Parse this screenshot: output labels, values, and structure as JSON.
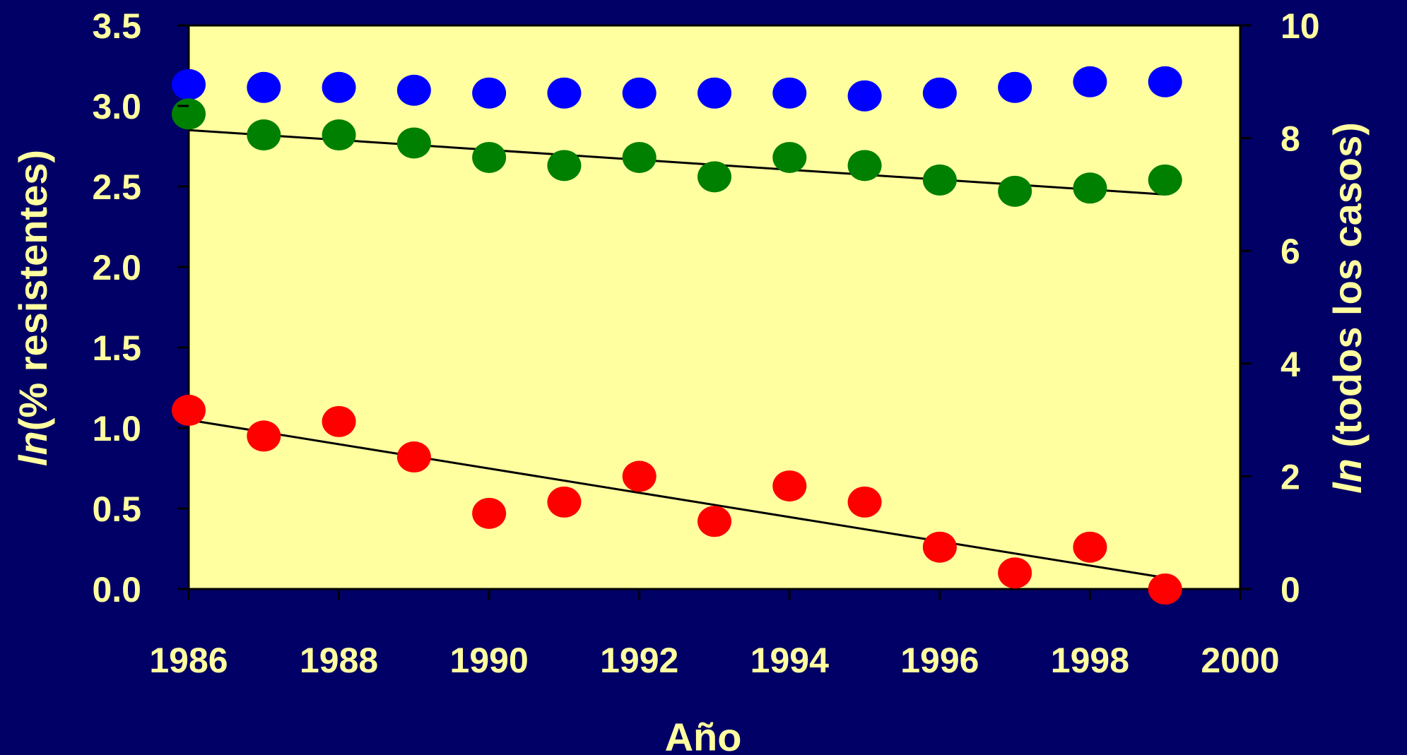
{
  "chart_data": {
    "type": "scatter",
    "xlabel": "Año",
    "ylabel_left_prefix": "ln",
    "ylabel_left_rest": "(% resistentes)",
    "ylabel_right_prefix": "ln",
    "ylabel_right_rest": " (todos los casos)",
    "xlim": [
      1986,
      2000
    ],
    "ylim_left": [
      0,
      3.5
    ],
    "ylim_right": [
      0,
      10
    ],
    "x_ticks": [
      "1986",
      "1988",
      "1990",
      "1992",
      "1994",
      "1996",
      "1998",
      "2000"
    ],
    "y_left_ticks": [
      "0.0",
      "0.5",
      "1.0",
      "1.5",
      "2.0",
      "2.5",
      "3.0",
      "3.5"
    ],
    "y_right_ticks": [
      "0",
      "2",
      "4",
      "6",
      "8",
      "10"
    ],
    "grid": false,
    "colors": {
      "background": "#000066",
      "plot_area": "#FFFFA0",
      "text": "#FFFFA0",
      "blue": "#0000FF",
      "green": "#008000",
      "red": "#FF0000",
      "trend_line": "#000000"
    },
    "series": [
      {
        "axis": "right",
        "color": "#0000FF",
        "x": [
          1986,
          1987,
          1988,
          1989,
          1990,
          1991,
          1992,
          1993,
          1994,
          1995,
          1996,
          1997,
          1998,
          1999
        ],
        "y": [
          8.95,
          8.9,
          8.9,
          8.85,
          8.8,
          8.8,
          8.8,
          8.8,
          8.8,
          8.75,
          8.8,
          8.9,
          9.0,
          9.0
        ]
      },
      {
        "axis": "left",
        "color": "#008000",
        "x": [
          1986,
          1987,
          1988,
          1989,
          1990,
          1991,
          1992,
          1993,
          1994,
          1995,
          1996,
          1997,
          1998,
          1999
        ],
        "y": [
          2.95,
          2.82,
          2.82,
          2.77,
          2.68,
          2.63,
          2.68,
          2.56,
          2.68,
          2.63,
          2.54,
          2.47,
          2.49,
          2.54
        ],
        "trend": [
          2.85,
          2.45
        ]
      },
      {
        "axis": "left",
        "color": "#FF0000",
        "x": [
          1986,
          1987,
          1988,
          1989,
          1990,
          1991,
          1992,
          1993,
          1994,
          1995,
          1996,
          1997,
          1998,
          1999
        ],
        "y": [
          1.11,
          0.95,
          1.04,
          0.82,
          0.47,
          0.54,
          0.7,
          0.42,
          0.64,
          0.54,
          0.26,
          0.1,
          0.26,
          0.0
        ],
        "trend": [
          1.05,
          0.07
        ]
      }
    ]
  }
}
